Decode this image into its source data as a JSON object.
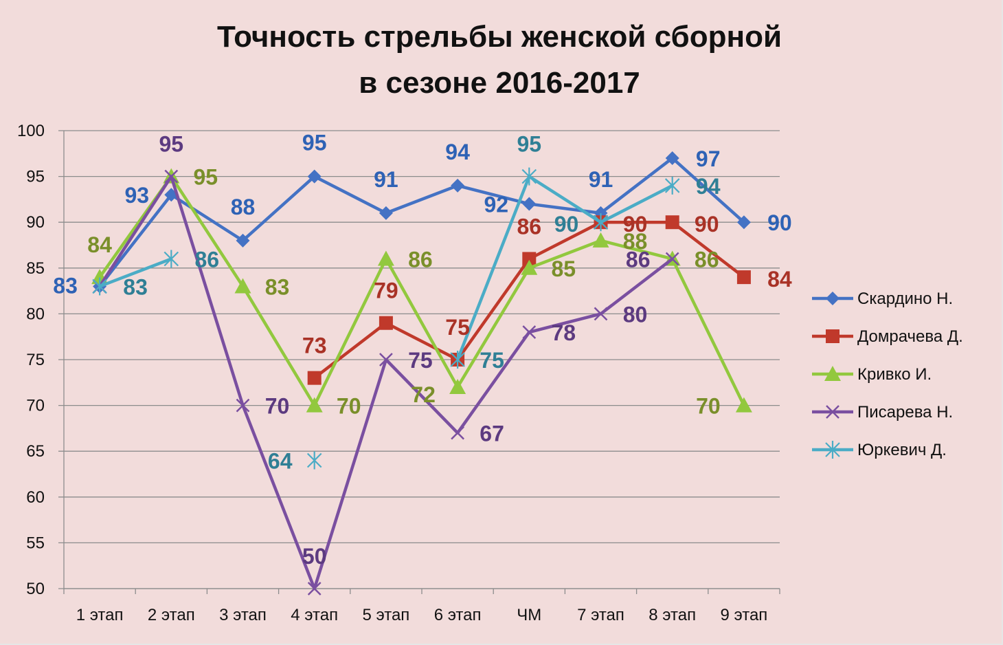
{
  "chart_data": {
    "type": "line",
    "title_line1": "Точность стрельбы женской сборной",
    "title_line2": "в сезоне 2016-2017",
    "categories": [
      "1 этап",
      "2 этап",
      "3 этап",
      "4 этап",
      "5 этап",
      "6 этап",
      "ЧМ",
      "7 этап",
      "8 этап",
      "9 этап"
    ],
    "ylim": [
      50,
      100
    ],
    "yticks": [
      "100",
      "95",
      "90",
      "85",
      "80",
      "75",
      "70",
      "65",
      "60",
      "55",
      "50"
    ],
    "grid": true,
    "legend_position": "right",
    "series": [
      {
        "name": "Скардино Н.",
        "color": "#4472c4",
        "label_color": "#2e62b5",
        "marker": "diamond",
        "values": [
          83,
          93,
          88,
          95,
          91,
          94,
          92,
          91,
          97,
          90
        ],
        "labels": [
          "83",
          "93",
          "88",
          "95",
          "91",
          "94",
          "92",
          "91",
          "97",
          "90"
        ]
      },
      {
        "name": "Домрачева Д.",
        "color": "#c0392b",
        "label_color": "#a93226",
        "marker": "square",
        "values": [
          null,
          null,
          null,
          73,
          79,
          75,
          86,
          90,
          90,
          84
        ],
        "labels": [
          "",
          "",
          "",
          "73",
          "79",
          "75",
          "86",
          "90",
          "90",
          "84"
        ]
      },
      {
        "name": "Кривко И.",
        "color": "#92c83e",
        "label_color": "#7a8f2a",
        "marker": "triangle",
        "values": [
          84,
          95,
          83,
          70,
          86,
          72,
          85,
          88,
          86,
          70
        ],
        "labels": [
          "84",
          "95",
          "83",
          "70",
          "86",
          "72",
          "85",
          "88",
          "86",
          "70"
        ]
      },
      {
        "name": "Писарева Н.",
        "color": "#7a4fa0",
        "label_color": "#5c3a80",
        "marker": "x",
        "values": [
          83,
          95,
          70,
          50,
          75,
          67,
          78,
          80,
          86,
          null
        ],
        "labels": [
          "",
          "95",
          "70",
          "50",
          "75",
          "67",
          "78",
          "80",
          "86",
          ""
        ]
      },
      {
        "name": "Юркевич Д.",
        "color": "#4bacc6",
        "label_color": "#2f7f95",
        "marker": "star",
        "values": [
          83,
          86,
          null,
          64,
          null,
          75,
          95,
          90,
          94,
          null
        ],
        "labels": [
          "83",
          "86",
          "",
          "64",
          "",
          "75",
          "95",
          "90",
          "94",
          ""
        ]
      }
    ]
  }
}
